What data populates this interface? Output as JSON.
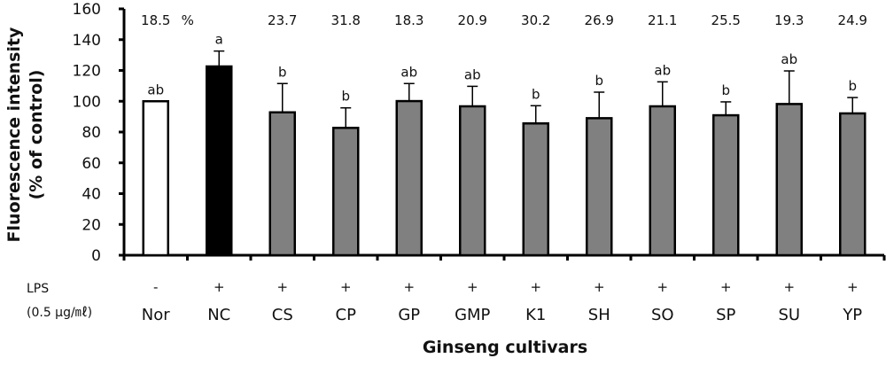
{
  "chart_data": {
    "type": "bar",
    "ylabel_lines": [
      "Fluorescence intensity",
      "(% of control)"
    ],
    "xlabel": "Ginseng cultivars",
    "ylim": [
      0,
      160
    ],
    "yticks": [
      0,
      20,
      40,
      60,
      80,
      100,
      120,
      140,
      160
    ],
    "grid": false,
    "categories": [
      "Nor",
      "NC",
      "CS",
      "CP",
      "GP",
      "GMP",
      "K1",
      "SH",
      "SO",
      "SP",
      "SU",
      "YP"
    ],
    "values": [
      100,
      122.6,
      92.8,
      82.7,
      100.1,
      96.7,
      85.6,
      89.0,
      96.7,
      90.9,
      98.2,
      92.1
    ],
    "error_upper": [
      0,
      10.0,
      18.7,
      13.0,
      11.4,
      13.0,
      11.5,
      16.9,
      15.9,
      8.7,
      21.5,
      10.3
    ],
    "significance": [
      "ab",
      "a",
      "b",
      "b",
      "ab",
      "ab",
      "b",
      "b",
      "ab",
      "b",
      "ab",
      "b"
    ],
    "top_labels": [
      "18.5",
      "",
      "23.7",
      "31.8",
      "18.3",
      "20.9",
      "30.2",
      "26.9",
      "21.1",
      "25.5",
      "19.3",
      "24.9"
    ],
    "top_label_unit": "%",
    "lps_row_label": "LPS",
    "lps_dose_label": "(0.5 μg/㎖)",
    "lps": [
      "-",
      "+",
      "+",
      "+",
      "+",
      "+",
      "+",
      "+",
      "+",
      "+",
      "+",
      "+"
    ],
    "bar_colors": [
      "#ffffff",
      "#000000",
      "#808080",
      "#808080",
      "#808080",
      "#808080",
      "#808080",
      "#808080",
      "#808080",
      "#808080",
      "#808080",
      "#808080"
    ]
  }
}
